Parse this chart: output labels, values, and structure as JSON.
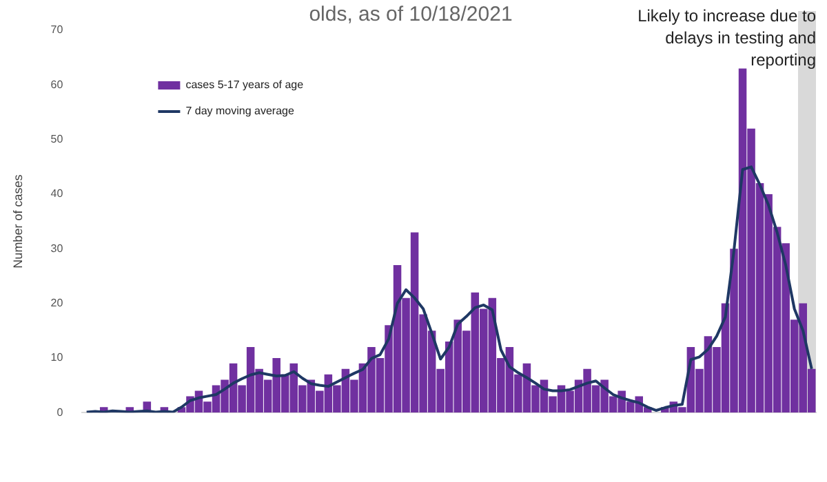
{
  "chart_data": {
    "type": "bar",
    "title": "olds, as of 10/18/2021",
    "ylabel": "Number of cases",
    "categories": [
      null,
      null,
      null,
      null,
      null,
      null,
      null,
      null,
      null,
      null,
      null,
      null,
      null,
      null,
      null,
      null,
      null,
      null,
      null,
      null,
      null,
      null,
      null,
      null,
      null,
      null,
      null,
      null,
      null,
      null,
      null,
      null,
      null,
      null,
      null,
      null,
      null,
      null,
      null,
      null,
      null,
      null,
      null,
      null,
      null,
      null,
      null,
      null,
      null,
      null,
      null,
      null,
      null,
      null,
      null,
      null,
      null,
      null,
      null,
      null,
      null,
      null,
      null,
      null,
      null,
      null,
      null,
      null,
      null,
      null,
      null,
      null,
      null,
      null,
      null,
      null,
      null,
      null,
      null,
      null,
      null,
      null,
      null,
      null,
      null
    ],
    "series": [
      {
        "name": "cases 5-17 years of age",
        "color": "#7030a0",
        "values": [
          0,
          0,
          1,
          0,
          0,
          1,
          0,
          2,
          0,
          1,
          0,
          1,
          3,
          4,
          2,
          5,
          6,
          9,
          5,
          12,
          8,
          6,
          10,
          7,
          9,
          5,
          6,
          4,
          7,
          5,
          8,
          6,
          9,
          12,
          10,
          16,
          27,
          21,
          33,
          18,
          15,
          8,
          13,
          17,
          15,
          22,
          19,
          21,
          10,
          12,
          7,
          9,
          5,
          6,
          3,
          5,
          4,
          6,
          8,
          5,
          6,
          3,
          4,
          2,
          3,
          1,
          0,
          1,
          2,
          1,
          12,
          8,
          14,
          12,
          20,
          30,
          63,
          52,
          42,
          40,
          34,
          31,
          17,
          20,
          8
        ]
      },
      {
        "name": "7 day moving average",
        "type": "line",
        "color": "#1f3864",
        "values": [
          0.1,
          0.2,
          0.1,
          0.3,
          0.2,
          0.1,
          0.2,
          0.3,
          0.1,
          0.2,
          0.1,
          1,
          2.2,
          2.7,
          3,
          3.3,
          4.3,
          5.4,
          6.2,
          6.9,
          7.3,
          7,
          6.7,
          6.8,
          7.5,
          6.3,
          5.3,
          5,
          4.8,
          5.6,
          6.4,
          7.2,
          7.9,
          9.9,
          10.6,
          13.5,
          20,
          22.5,
          21,
          19,
          14.5,
          9.8,
          12,
          16.2,
          17.6,
          19.2,
          19.7,
          18.8,
          11.5,
          8.4,
          7.3,
          6.4,
          5.4,
          4.3,
          4,
          4,
          4.2,
          4.8,
          5.4,
          5.8,
          4.5,
          3.3,
          2.7,
          2.2,
          1.8,
          1,
          0.4,
          0.9,
          1.3,
          1.5,
          9.7,
          10.2,
          11.6,
          14,
          17.5,
          29.7,
          44.5,
          45,
          41.7,
          38,
          33,
          27,
          19,
          15,
          8
        ]
      }
    ],
    "ylim": [
      0,
      70
    ],
    "yticks": [
      0,
      10,
      20,
      30,
      40,
      50,
      60,
      70
    ],
    "annotations": [
      "Likely to increase due to delays in testing and reporting"
    ],
    "grid": false,
    "legend": "top left",
    "marker": "none",
    "line_style": "solid"
  }
}
